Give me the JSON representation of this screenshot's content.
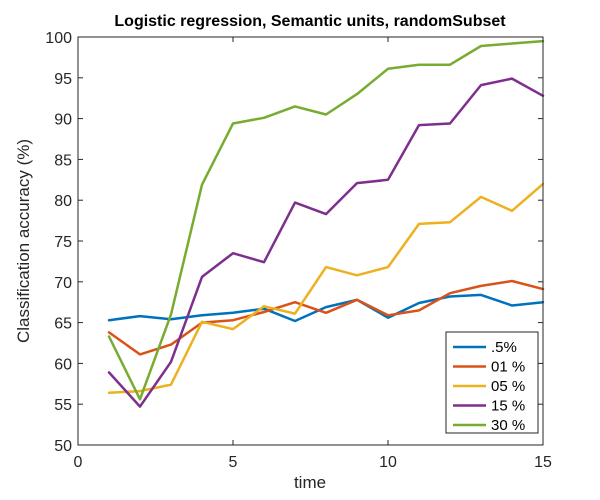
{
  "chart_data": {
    "type": "line",
    "title": "Logistic regression, Semantic units, randomSubset",
    "xlabel": "time",
    "ylabel": "Classification accuracy (%)",
    "xlim": [
      0,
      15
    ],
    "ylim": [
      50,
      100
    ],
    "xticks": [
      "0",
      "5",
      "10",
      "15"
    ],
    "yticks": [
      "50",
      "55",
      "60",
      "65",
      "70",
      "75",
      "80",
      "85",
      "90",
      "95",
      "100"
    ],
    "x": [
      1,
      2,
      3,
      4,
      5,
      6,
      7,
      8,
      9,
      10,
      11,
      12,
      13,
      14,
      15
    ],
    "grid": false,
    "legend_position": "bottom-right",
    "series": [
      {
        "name": ".5%",
        "color": "#0072bd",
        "values": [
          65.3,
          65.8,
          65.4,
          65.9,
          66.2,
          66.7,
          65.2,
          66.9,
          67.8,
          65.6,
          67.4,
          68.2,
          68.4,
          67.1,
          67.5
        ]
      },
      {
        "name": "01 %",
        "color": "#d95319",
        "values": [
          63.8,
          61.1,
          62.3,
          65.0,
          65.3,
          66.3,
          67.5,
          66.2,
          67.8,
          65.9,
          66.5,
          68.6,
          69.5,
          70.1,
          69.1
        ]
      },
      {
        "name": "05 %",
        "color": "#edb120",
        "values": [
          56.4,
          56.6,
          57.4,
          65.1,
          64.2,
          67.0,
          66.1,
          71.8,
          70.8,
          71.8,
          77.1,
          77.3,
          80.4,
          78.7,
          82.0
        ]
      },
      {
        "name": "15 %",
        "color": "#7e2f8e",
        "values": [
          58.9,
          54.7,
          60.2,
          70.6,
          73.5,
          72.4,
          79.7,
          78.3,
          82.1,
          82.5,
          89.2,
          89.4,
          94.1,
          94.9,
          92.8
        ]
      },
      {
        "name": "30 %",
        "color": "#77ac30",
        "values": [
          63.3,
          55.6,
          66.0,
          81.9,
          89.4,
          90.1,
          91.5,
          90.5,
          93.0,
          96.1,
          96.6,
          96.6,
          98.9,
          99.2,
          99.5
        ]
      }
    ]
  }
}
